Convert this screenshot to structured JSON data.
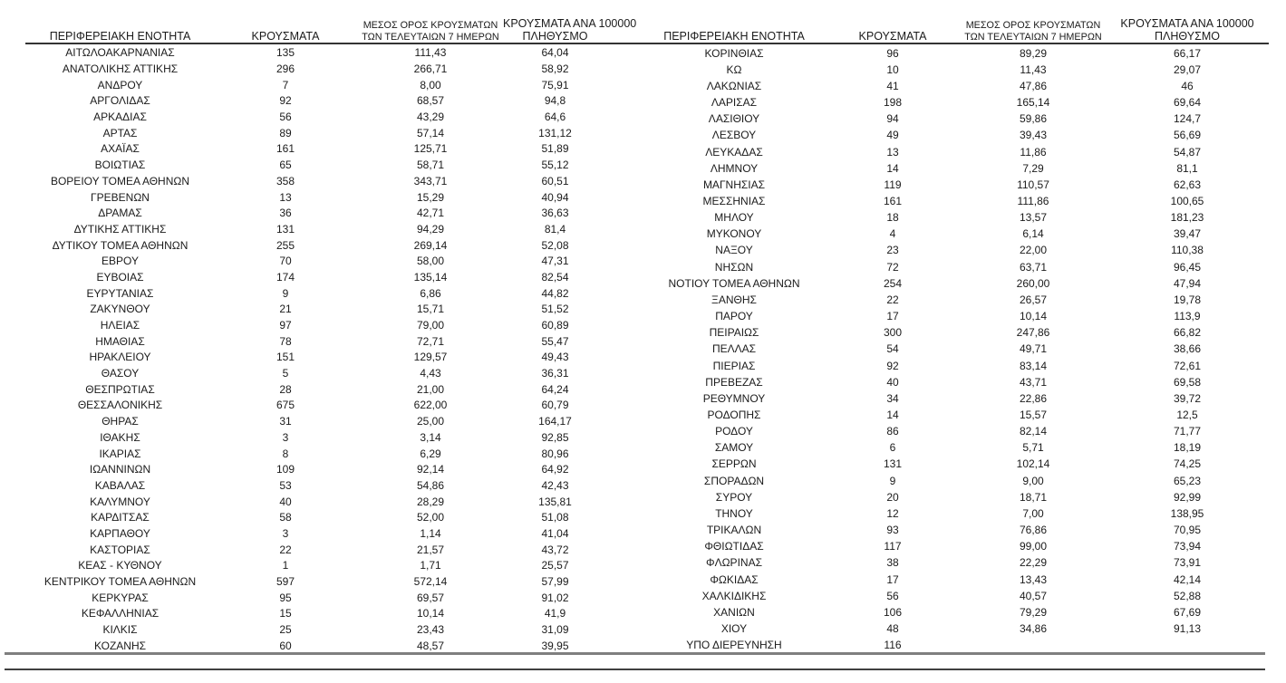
{
  "columns": {
    "region": "ΠΕΡΙΦΕΡΕΙΑΚΗ ΕΝΟΤΗΤΑ",
    "cases": "ΚΡΟΥΣΜΑΤΑ",
    "avg7_line1": "ΜΕΣΟΣ ΟΡΟΣ ΚΡΟΥΣΜΑΤΩΝ",
    "avg7_line2": "ΤΩΝ ΤΕΛΕΥΤΑΙΩΝ 7 ΗΜΕΡΩΝ",
    "per100k_line1": "ΚΡΟΥΣΜΑΤΑ ΑΝΑ 100000",
    "per100k_line2": "ΠΛΗΘΥΣΜΟ"
  },
  "table": {
    "left_rows": [
      [
        "ΑΙΤΩΛΟΑΚΑΡΝΑΝΙΑΣ",
        "135",
        "111,43",
        "64,04"
      ],
      [
        "ΑΝΑΤΟΛΙΚΗΣ ΑΤΤΙΚΗΣ",
        "296",
        "266,71",
        "58,92"
      ],
      [
        "ΑΝΔΡΟΥ",
        "7",
        "8,00",
        "75,91"
      ],
      [
        "ΑΡΓΟΛΙΔΑΣ",
        "92",
        "68,57",
        "94,8"
      ],
      [
        "ΑΡΚΑΔΙΑΣ",
        "56",
        "43,29",
        "64,6"
      ],
      [
        "ΑΡΤΑΣ",
        "89",
        "57,14",
        "131,12"
      ],
      [
        "ΑΧΑΪΑΣ",
        "161",
        "125,71",
        "51,89"
      ],
      [
        "ΒΟΙΩΤΙΑΣ",
        "65",
        "58,71",
        "55,12"
      ],
      [
        "ΒΟΡΕΙΟΥ ΤΟΜΕΑ ΑΘΗΝΩΝ",
        "358",
        "343,71",
        "60,51"
      ],
      [
        "ΓΡΕΒΕΝΩΝ",
        "13",
        "15,29",
        "40,94"
      ],
      [
        "ΔΡΑΜΑΣ",
        "36",
        "42,71",
        "36,63"
      ],
      [
        "ΔΥΤΙΚΗΣ ΑΤΤΙΚΗΣ",
        "131",
        "94,29",
        "81,4"
      ],
      [
        "ΔΥΤΙΚΟΥ ΤΟΜΕΑ ΑΘΗΝΩΝ",
        "255",
        "269,14",
        "52,08"
      ],
      [
        "ΕΒΡΟΥ",
        "70",
        "58,00",
        "47,31"
      ],
      [
        "ΕΥΒΟΙΑΣ",
        "174",
        "135,14",
        "82,54"
      ],
      [
        "ΕΥΡΥΤΑΝΙΑΣ",
        "9",
        "6,86",
        "44,82"
      ],
      [
        "ΖΑΚΥΝΘΟΥ",
        "21",
        "15,71",
        "51,52"
      ],
      [
        "ΗΛΕΙΑΣ",
        "97",
        "79,00",
        "60,89"
      ],
      [
        "ΗΜΑΘΙΑΣ",
        "78",
        "72,71",
        "55,47"
      ],
      [
        "ΗΡΑΚΛΕΙΟΥ",
        "151",
        "129,57",
        "49,43"
      ],
      [
        "ΘΑΣΟΥ",
        "5",
        "4,43",
        "36,31"
      ],
      [
        "ΘΕΣΠΡΩΤΙΑΣ",
        "28",
        "21,00",
        "64,24"
      ],
      [
        "ΘΕΣΣΑΛΟΝΙΚΗΣ",
        "675",
        "622,00",
        "60,79"
      ],
      [
        "ΘΗΡΑΣ",
        "31",
        "25,00",
        "164,17"
      ],
      [
        "ΙΘΑΚΗΣ",
        "3",
        "3,14",
        "92,85"
      ],
      [
        "ΙΚΑΡΙΑΣ",
        "8",
        "6,29",
        "80,96"
      ],
      [
        "ΙΩΑΝΝΙΝΩΝ",
        "109",
        "92,14",
        "64,92"
      ],
      [
        "ΚΑΒΑΛΑΣ",
        "53",
        "54,86",
        "42,43"
      ],
      [
        "ΚΑΛΥΜΝΟΥ",
        "40",
        "28,29",
        "135,81"
      ],
      [
        "ΚΑΡΔΙΤΣΑΣ",
        "58",
        "52,00",
        "51,08"
      ],
      [
        "ΚΑΡΠΑΘΟΥ",
        "3",
        "1,14",
        "41,04"
      ],
      [
        "ΚΑΣΤΟΡΙΑΣ",
        "22",
        "21,57",
        "43,72"
      ],
      [
        "ΚΕΑΣ - ΚΥΘΝΟΥ",
        "1",
        "1,71",
        "25,57"
      ],
      [
        "ΚΕΝΤΡΙΚΟΥ ΤΟΜΕΑ ΑΘΗΝΩΝ",
        "597",
        "572,14",
        "57,99"
      ],
      [
        "ΚΕΡΚΥΡΑΣ",
        "95",
        "69,57",
        "91,02"
      ],
      [
        "ΚΕΦΑΛΛΗΝΙΑΣ",
        "15",
        "10,14",
        "41,9"
      ],
      [
        "ΚΙΛΚΙΣ",
        "25",
        "23,43",
        "31,09"
      ],
      [
        "ΚΟΖΑΝΗΣ",
        "60",
        "48,57",
        "39,95"
      ]
    ],
    "right_rows": [
      [
        "ΚΟΡΙΝΘΙΑΣ",
        "96",
        "89,29",
        "66,17"
      ],
      [
        "ΚΩ",
        "10",
        "11,43",
        "29,07"
      ],
      [
        "ΛΑΚΩΝΙΑΣ",
        "41",
        "47,86",
        "46"
      ],
      [
        "ΛΑΡΙΣΑΣ",
        "198",
        "165,14",
        "69,64"
      ],
      [
        "ΛΑΣΙΘΙΟΥ",
        "94",
        "59,86",
        "124,7"
      ],
      [
        "ΛΕΣΒΟΥ",
        "49",
        "39,43",
        "56,69"
      ],
      [
        "ΛΕΥΚΑΔΑΣ",
        "13",
        "11,86",
        "54,87"
      ],
      [
        "ΛΗΜΝΟΥ",
        "14",
        "7,29",
        "81,1"
      ],
      [
        "ΜΑΓΝΗΣΙΑΣ",
        "119",
        "110,57",
        "62,63"
      ],
      [
        "ΜΕΣΣΗΝΙΑΣ",
        "161",
        "111,86",
        "100,65"
      ],
      [
        "ΜΗΛΟΥ",
        "18",
        "13,57",
        "181,23"
      ],
      [
        "ΜΥΚΟΝΟΥ",
        "4",
        "6,14",
        "39,47"
      ],
      [
        "ΝΑΞΟΥ",
        "23",
        "22,00",
        "110,38"
      ],
      [
        "ΝΗΣΩΝ",
        "72",
        "63,71",
        "96,45"
      ],
      [
        "ΝΟΤΙΟΥ ΤΟΜΕΑ ΑΘΗΝΩΝ",
        "254",
        "260,00",
        "47,94"
      ],
      [
        "ΞΑΝΘΗΣ",
        "22",
        "26,57",
        "19,78"
      ],
      [
        "ΠΑΡΟΥ",
        "17",
        "10,14",
        "113,9"
      ],
      [
        "ΠΕΙΡΑΙΩΣ",
        "300",
        "247,86",
        "66,82"
      ],
      [
        "ΠΕΛΛΑΣ",
        "54",
        "49,71",
        "38,66"
      ],
      [
        "ΠΙΕΡΙΑΣ",
        "92",
        "83,14",
        "72,61"
      ],
      [
        "ΠΡΕΒΕΖΑΣ",
        "40",
        "43,71",
        "69,58"
      ],
      [
        "ΡΕΘΥΜΝΟΥ",
        "34",
        "22,86",
        "39,72"
      ],
      [
        "ΡΟΔΟΠΗΣ",
        "14",
        "15,57",
        "12,5"
      ],
      [
        "ΡΟΔΟΥ",
        "86",
        "82,14",
        "71,77"
      ],
      [
        "ΣΑΜΟΥ",
        "6",
        "5,71",
        "18,19"
      ],
      [
        "ΣΕΡΡΩΝ",
        "131",
        "102,14",
        "74,25"
      ],
      [
        "ΣΠΟΡΑΔΩΝ",
        "9",
        "9,00",
        "65,23"
      ],
      [
        "ΣΥΡΟΥ",
        "20",
        "18,71",
        "92,99"
      ],
      [
        "ΤΗΝΟΥ",
        "12",
        "7,00",
        "138,95"
      ],
      [
        "ΤΡΙΚΑΛΩΝ",
        "93",
        "76,86",
        "70,95"
      ],
      [
        "ΦΘΙΩΤΙΔΑΣ",
        "117",
        "99,00",
        "73,94"
      ],
      [
        "ΦΛΩΡΙΝΑΣ",
        "38",
        "22,29",
        "73,91"
      ],
      [
        "ΦΩΚΙΔΑΣ",
        "17",
        "13,43",
        "42,14"
      ],
      [
        "ΧΑΛΚΙΔΙΚΗΣ",
        "56",
        "40,57",
        "52,88"
      ],
      [
        "ΧΑΝΙΩΝ",
        "106",
        "79,29",
        "67,69"
      ],
      [
        "ΧΙΟΥ",
        "48",
        "34,86",
        "91,13"
      ],
      [
        "ΥΠΟ ΔΙΕΡΕΥΝΗΣΗ",
        "116",
        "",
        ""
      ]
    ]
  },
  "colors": {
    "text": "#1b1b1b",
    "header_rule": "#333333",
    "bottom_rule_gray": "#7f7f7f",
    "bottom_rule_dark": "#404040"
  }
}
